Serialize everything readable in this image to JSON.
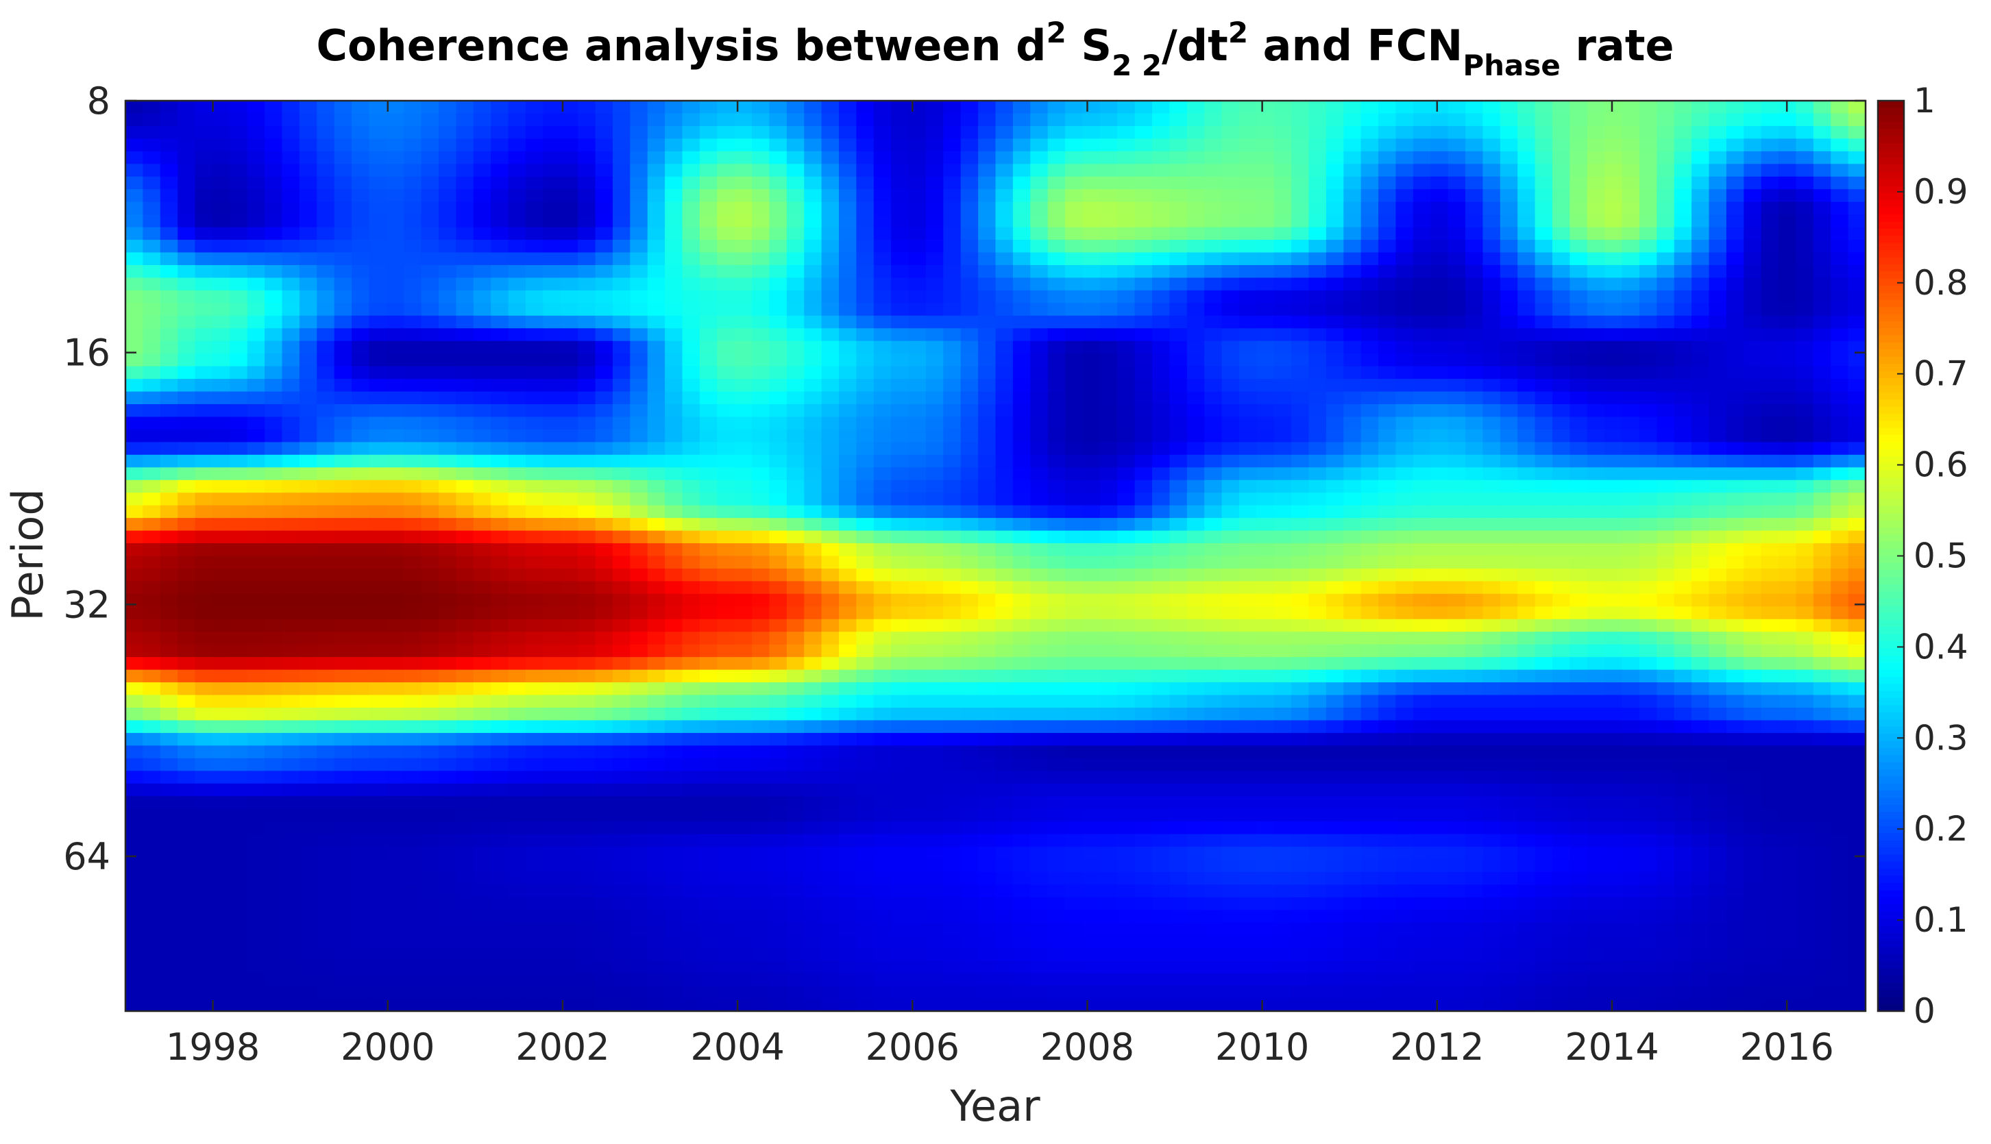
{
  "chart_data": {
    "type": "heatmap",
    "title": {
      "main": "Coherence analysis between d",
      "sup1": "2",
      "mid1": " S",
      "sub1": "2 2",
      "mid2": "/dt",
      "sup2": "2",
      "mid3": " and FCN",
      "sub2": "Phase",
      "end": " rate"
    },
    "xlabel": "Year",
    "ylabel": "Period",
    "xlim": [
      1997.0,
      2016.9
    ],
    "ylim_period": [
      8,
      98
    ],
    "y_scale": "log2",
    "x_ticks": [
      "1998",
      "2000",
      "2002",
      "2004",
      "2006",
      "2008",
      "2010",
      "2012",
      "2014",
      "2016"
    ],
    "y_ticks": [
      "8",
      "16",
      "32",
      "64"
    ],
    "colorbar": {
      "colormap": "jet",
      "range": [
        0,
        1
      ],
      "ticks": [
        "0",
        "0.1",
        "0.2",
        "0.3",
        "0.4",
        "0.5",
        "0.6",
        "0.7",
        "0.8",
        "0.9",
        "1"
      ]
    },
    "grid": false,
    "z_description_sparse": {
      "years": [
        1997,
        1998,
        2000,
        2002,
        2004,
        2006,
        2008,
        2010,
        2012,
        2014,
        2016,
        2016.9
      ],
      "periods": [
        8,
        11,
        14,
        16,
        20,
        24,
        28,
        32,
        36,
        42,
        48,
        56,
        64,
        80,
        98
      ],
      "values": [
        [
          0.05,
          0.1,
          0.25,
          0.15,
          0.3,
          0.08,
          0.3,
          0.45,
          0.35,
          0.5,
          0.4,
          0.55
        ],
        [
          0.25,
          0.05,
          0.2,
          0.05,
          0.55,
          0.1,
          0.55,
          0.5,
          0.1,
          0.55,
          0.05,
          0.15
        ],
        [
          0.5,
          0.45,
          0.2,
          0.35,
          0.4,
          0.15,
          0.25,
          0.1,
          0.05,
          0.25,
          0.05,
          0.1
        ],
        [
          0.5,
          0.4,
          0.05,
          0.05,
          0.45,
          0.3,
          0.05,
          0.2,
          0.1,
          0.05,
          0.1,
          0.15
        ],
        [
          0.1,
          0.1,
          0.25,
          0.2,
          0.35,
          0.25,
          0.05,
          0.15,
          0.3,
          0.15,
          0.05,
          0.1
        ],
        [
          0.6,
          0.7,
          0.72,
          0.6,
          0.4,
          0.2,
          0.1,
          0.35,
          0.4,
          0.4,
          0.45,
          0.55
        ],
        [
          0.95,
          0.98,
          0.98,
          0.92,
          0.75,
          0.55,
          0.45,
          0.5,
          0.55,
          0.55,
          0.65,
          0.72
        ],
        [
          0.98,
          1.0,
          1.0,
          0.97,
          0.88,
          0.68,
          0.58,
          0.62,
          0.72,
          0.62,
          0.7,
          0.78
        ],
        [
          0.95,
          0.98,
          0.97,
          0.92,
          0.8,
          0.55,
          0.5,
          0.52,
          0.5,
          0.4,
          0.55,
          0.62
        ],
        [
          0.55,
          0.65,
          0.62,
          0.55,
          0.45,
          0.35,
          0.35,
          0.3,
          0.15,
          0.15,
          0.25,
          0.3
        ],
        [
          0.2,
          0.25,
          0.2,
          0.15,
          0.12,
          0.08,
          0.05,
          0.05,
          0.05,
          0.05,
          0.05,
          0.05
        ],
        [
          0.05,
          0.05,
          0.05,
          0.05,
          0.05,
          0.08,
          0.1,
          0.1,
          0.1,
          0.08,
          0.05,
          0.05
        ],
        [
          0.05,
          0.05,
          0.06,
          0.08,
          0.1,
          0.12,
          0.15,
          0.18,
          0.16,
          0.12,
          0.06,
          0.05
        ],
        [
          0.05,
          0.05,
          0.06,
          0.06,
          0.08,
          0.1,
          0.12,
          0.12,
          0.1,
          0.08,
          0.06,
          0.05
        ],
        [
          0.05,
          0.05,
          0.05,
          0.05,
          0.06,
          0.08,
          0.08,
          0.08,
          0.08,
          0.06,
          0.05,
          0.05
        ]
      ]
    }
  }
}
